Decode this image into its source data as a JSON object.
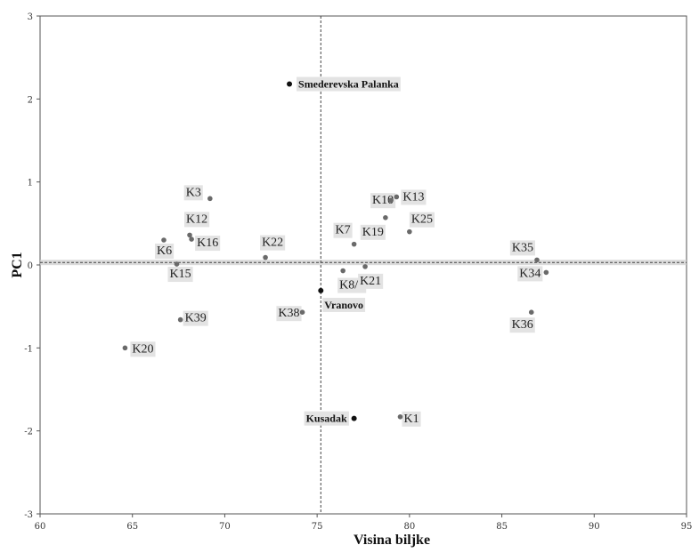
{
  "chart_data": {
    "type": "scatter",
    "title": "",
    "xlabel": "Visina biljke",
    "ylabel": "PC1",
    "xlim": [
      60,
      95
    ],
    "ylim": [
      -3,
      3
    ],
    "x_ticks": [
      60,
      65,
      70,
      75,
      80,
      85,
      90,
      95
    ],
    "y_ticks": [
      -3,
      -2,
      -1,
      0,
      1,
      2,
      3
    ],
    "reference_lines": {
      "x": 75.2,
      "y": 0.03
    },
    "grid": false,
    "colors": {
      "genotype": "#6a6a6a",
      "location": "#111111",
      "label_background": "#e3e3e3",
      "reference_line": "#444444",
      "reference_band": "#cccccc"
    },
    "series": [
      {
        "points": [
          {
            "label": "K1",
            "x": 79.5,
            "y": -1.83
          },
          {
            "label": "K3",
            "x": 69.2,
            "y": 0.8
          },
          {
            "label": "K6",
            "x": 66.7,
            "y": 0.3
          },
          {
            "label": "K7",
            "x": 77.0,
            "y": 0.25
          },
          {
            "label": "K8/1",
            "x": 76.4,
            "y": -0.07
          },
          {
            "label": "K10",
            "x": 79.0,
            "y": 0.78
          },
          {
            "label": "K12",
            "x": 68.1,
            "y": 0.36
          },
          {
            "label": "K13",
            "x": 79.3,
            "y": 0.82
          },
          {
            "label": "K15",
            "x": 67.4,
            "y": 0.01
          },
          {
            "label": "K16",
            "x": 68.2,
            "y": 0.31
          },
          {
            "label": "K19",
            "x": 78.7,
            "y": 0.57
          },
          {
            "label": "K20",
            "x": 64.6,
            "y": -1.0
          },
          {
            "label": "K21",
            "x": 77.6,
            "y": -0.02
          },
          {
            "label": "K22",
            "x": 72.2,
            "y": 0.09
          },
          {
            "label": "K25",
            "x": 80.0,
            "y": 0.4
          },
          {
            "label": "K34",
            "x": 87.4,
            "y": -0.09
          },
          {
            "label": "K35",
            "x": 86.9,
            "y": 0.06
          },
          {
            "label": "K36",
            "x": 86.6,
            "y": -0.57
          },
          {
            "label": "K38",
            "x": 74.2,
            "y": -0.57
          },
          {
            "label": "K39",
            "x": 67.6,
            "y": -0.66
          }
        ]
      },
      {
        "points": [
          {
            "label": "Smederevska Palanka",
            "x": 73.5,
            "y": 2.18
          },
          {
            "label": "Vranovo",
            "x": 75.2,
            "y": -0.31
          },
          {
            "label": "Kusadak",
            "x": 77.0,
            "y": -1.85
          }
        ]
      }
    ]
  }
}
